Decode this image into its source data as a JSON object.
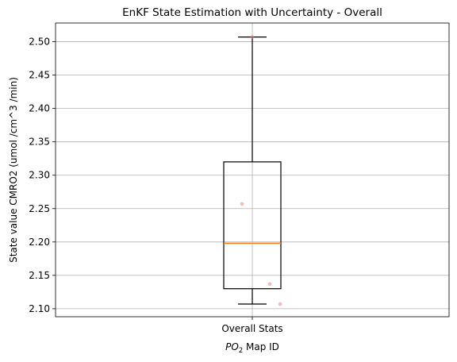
{
  "chart_data": {
    "type": "box",
    "title": "EnKF State Estimation with Uncertainty - Overall",
    "xlabel_main": "PO",
    "xlabel_sub": "2",
    "xlabel_rest": " Map ID",
    "ylabel": "State value CMRO2 (umol /cm^3 /min)",
    "categories": [
      "Overall Stats"
    ],
    "ylim": [
      2.088,
      2.528
    ],
    "yticks": [
      2.1,
      2.15,
      2.2,
      2.25,
      2.3,
      2.35,
      2.4,
      2.45,
      2.5
    ],
    "ytick_labels": [
      "2.10",
      "2.15",
      "2.20",
      "2.25",
      "2.30",
      "2.35",
      "2.40",
      "2.45",
      "2.50"
    ],
    "grid": true,
    "box": {
      "whisker_low": 2.107,
      "q1": 2.13,
      "median": 2.198,
      "q3": 2.32,
      "whisker_high": 2.507
    },
    "points": [
      {
        "x_offset": -0.1,
        "y": 2.257
      },
      {
        "x_offset": 0.17,
        "y": 2.137
      },
      {
        "x_offset": 0.27,
        "y": 2.107
      },
      {
        "x_offset": 0.0,
        "y": 2.507
      }
    ],
    "colors": {
      "median": "#ff7f0e",
      "points": "#f08080",
      "grid": "#b0b0b0"
    }
  }
}
